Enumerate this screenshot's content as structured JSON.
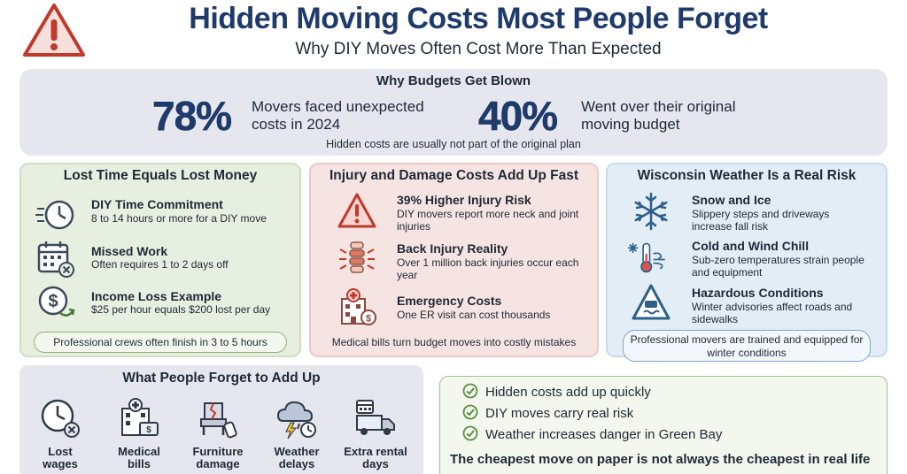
{
  "header": {
    "title": "Hidden Moving Costs Most People Forget",
    "subtitle": "Why DIY Moves Often Cost More Than Expected"
  },
  "top": {
    "heading": "Why Budgets Get Blown",
    "stats": [
      {
        "value": "78%",
        "desc_line1": "Movers faced unexpected",
        "desc_line2": "costs in 2024"
      },
      {
        "value": "40%",
        "desc_line1": "Went over their original",
        "desc_line2": "moving budget"
      }
    ],
    "footnote": "Hidden costs are usually not part of the original plan"
  },
  "time_panel": {
    "title": "Lost Time Equals Lost Money",
    "items": [
      {
        "icon": "clock-icon",
        "title": "DIY Time Commitment",
        "desc": "8 to 14 hours or more for a DIY move"
      },
      {
        "icon": "calendar-icon",
        "title": "Missed Work",
        "desc": "Often requires 1 to 2 days off"
      },
      {
        "icon": "dollar-coin-icon",
        "title": "Income Loss Example",
        "desc": "$25 per hour equals $200 lost per day"
      }
    ],
    "footer": "Professional crews often finish in 3 to 5 hours"
  },
  "injury_panel": {
    "title": "Injury and Damage Costs Add Up Fast",
    "items": [
      {
        "icon": "warning-icon",
        "title": "39% Higher Injury Risk",
        "desc": "DIY movers report more neck and joint injuries"
      },
      {
        "icon": "spine-icon",
        "title": "Back Injury Reality",
        "desc": "Over 1 million back injuries occur each year"
      },
      {
        "icon": "hospital-icon",
        "title": "Emergency Costs",
        "desc": "One ER visit can cost thousands"
      }
    ],
    "footer": "Medical bills turn budget moves into costly mistakes"
  },
  "weather_panel": {
    "title": "Wisconsin Weather Is a Real Risk",
    "items": [
      {
        "icon": "snowflake-icon",
        "title": "Snow and Ice",
        "desc": "Slippery steps and driveways increase fall risk"
      },
      {
        "icon": "thermometer-icon",
        "title": "Cold and Wind Chill",
        "desc": "Sub-zero temperatures strain people and equipment"
      },
      {
        "icon": "slippery-road-icon",
        "title": "Hazardous Conditions",
        "desc": "Winter advisories affect roads and sidewalks"
      }
    ],
    "footer": "Professional movers are trained and equipped for winter conditions"
  },
  "forget": {
    "title": "What People Forget to Add Up",
    "items": [
      {
        "icon": "clock-icon",
        "line1": "Lost",
        "line2": "wages"
      },
      {
        "icon": "hospital-bill-icon",
        "line1": "Medical",
        "line2": "bills"
      },
      {
        "icon": "damaged-chair-icon",
        "line1": "Furniture",
        "line2": "damage"
      },
      {
        "icon": "storm-cloud-icon",
        "line1": "Weather",
        "line2": "delays"
      },
      {
        "icon": "truck-icon",
        "line1": "Extra rental",
        "line2": "days"
      }
    ]
  },
  "checklist": {
    "items": [
      "Hidden costs add up quickly",
      "DIY moves carry real risk",
      "Weather increases danger in Green Bay"
    ],
    "final": "The cheapest move on paper is not always the cheapest in real life"
  },
  "colors": {
    "navy": "#1f3b6b",
    "green_panel": "#e7efe1",
    "red_panel": "#f6e4e2",
    "blue_panel": "#e3edf6",
    "gray_panel": "#e6e7ee",
    "warning_red": "#c0392b"
  }
}
